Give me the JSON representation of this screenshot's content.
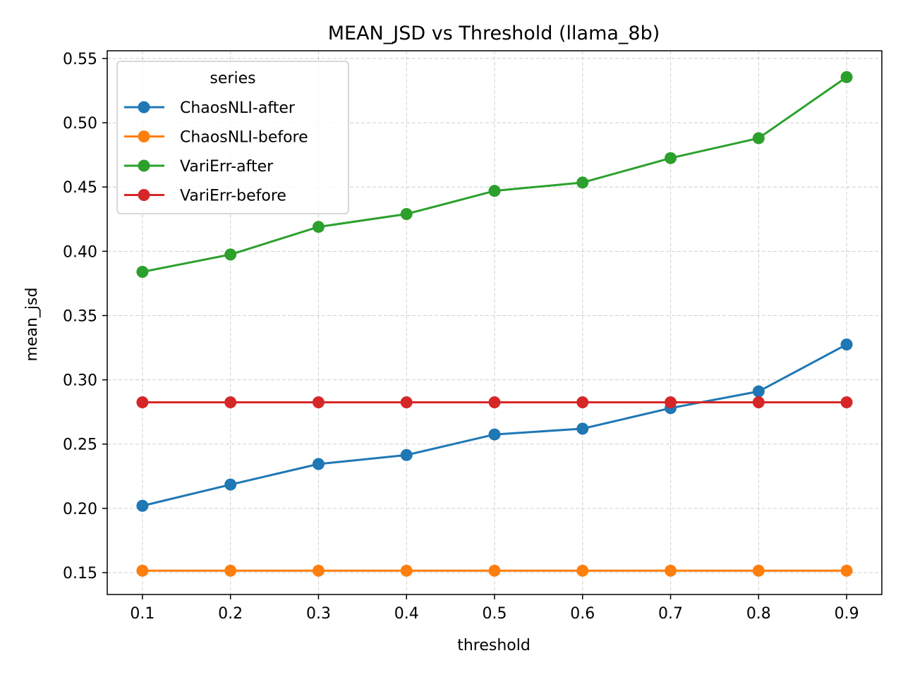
{
  "chart_data": {
    "type": "line",
    "title": "MEAN_JSD vs Threshold (llama_8b)",
    "xlabel": "threshold",
    "ylabel": "mean_jsd",
    "x": [
      0.1,
      0.2,
      0.3,
      0.4,
      0.5,
      0.6,
      0.7,
      0.8,
      0.9
    ],
    "x_ticks": [
      "0.1",
      "0.2",
      "0.3",
      "0.4",
      "0.5",
      "0.6",
      "0.7",
      "0.8",
      "0.9"
    ],
    "y_ticks": [
      "0.15",
      "0.20",
      "0.25",
      "0.30",
      "0.35",
      "0.40",
      "0.45",
      "0.50",
      "0.55"
    ],
    "y_tick_values": [
      0.15,
      0.2,
      0.25,
      0.3,
      0.35,
      0.4,
      0.45,
      0.5,
      0.55
    ],
    "xlim": [
      0.06,
      0.94
    ],
    "ylim": [
      0.133,
      0.556
    ],
    "grid": true,
    "legend": {
      "title": "series",
      "placement": "top-left"
    },
    "series": [
      {
        "name": "ChaosNLI-after",
        "color": "#1f77b4",
        "values": [
          0.202,
          0.2185,
          0.2345,
          0.2415,
          0.2575,
          0.262,
          0.278,
          0.291,
          0.3275
        ]
      },
      {
        "name": "ChaosNLI-before",
        "color": "#ff7f0e",
        "values": [
          0.1515,
          0.1515,
          0.1515,
          0.1515,
          0.1515,
          0.1515,
          0.1515,
          0.1515,
          0.1515
        ]
      },
      {
        "name": "VariErr-after",
        "color": "#2ca02c",
        "values": [
          0.384,
          0.3975,
          0.419,
          0.429,
          0.447,
          0.4535,
          0.4725,
          0.488,
          0.5355
        ]
      },
      {
        "name": "VariErr-before",
        "color": "#d62728",
        "values": [
          0.2825,
          0.2825,
          0.2825,
          0.2825,
          0.2825,
          0.2825,
          0.2825,
          0.2825,
          0.2825
        ]
      }
    ]
  }
}
